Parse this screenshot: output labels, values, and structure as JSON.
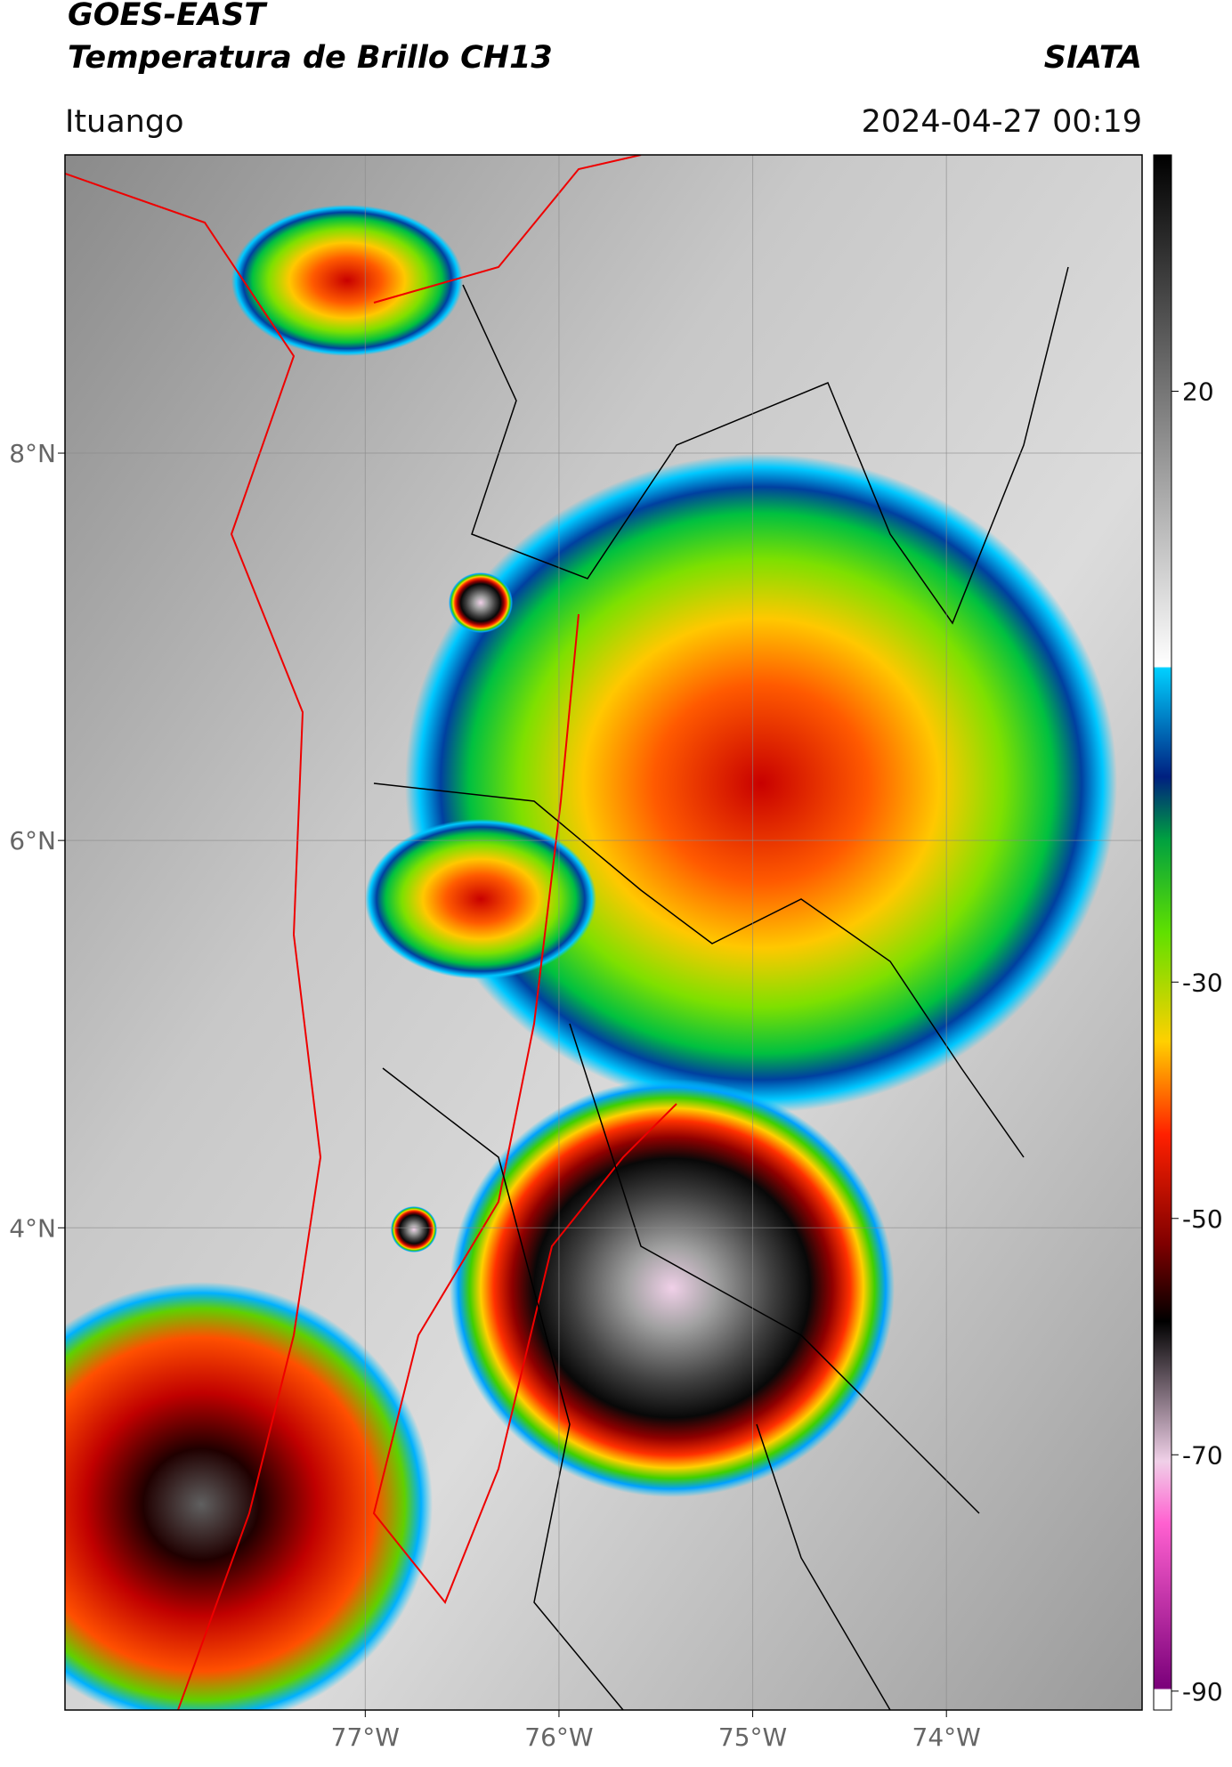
{
  "header": {
    "title": "GOES-EAST",
    "subtitle": "Temperatura de Brillo CH13",
    "brand": "SIATA",
    "location": "Ituango",
    "datetime": "2024-04-27 00:19"
  },
  "map": {
    "xlim": [
      -78.55,
      -72.99
    ],
    "ylim": [
      1.51,
      9.54
    ],
    "xticks": [
      {
        "value": -77,
        "label": "77°W"
      },
      {
        "value": -76,
        "label": "76°W"
      },
      {
        "value": -75,
        "label": "75°W"
      },
      {
        "value": -74,
        "label": "74°W"
      }
    ],
    "yticks": [
      {
        "value": 8,
        "label": "8°N"
      },
      {
        "value": 6,
        "label": "6°N"
      },
      {
        "value": 4,
        "label": "4°N"
      }
    ],
    "grid": true
  },
  "colorbar": {
    "clim": [
      -91.6,
      40
    ],
    "ticks": [
      20,
      -30,
      -50,
      -70,
      -90
    ]
  }
}
